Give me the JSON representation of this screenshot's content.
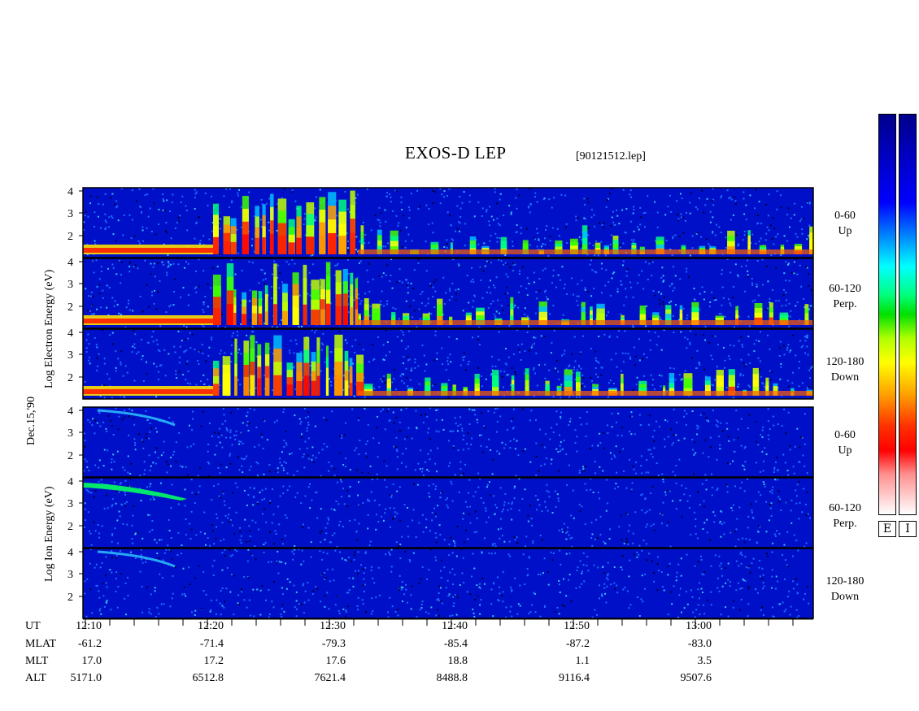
{
  "header": {
    "title": "EXOS-D LEP",
    "filename": "[90121512.lep]"
  },
  "y_labels": {
    "date": "Dec.15,'90",
    "electron": "Log Electron Energy (eV)",
    "ion": "Log Ion Energy (eV)"
  },
  "panel_labels": [
    {
      "range": "0-60",
      "dir": "Up"
    },
    {
      "range": "60-120",
      "dir": "Perp."
    },
    {
      "range": "120-180",
      "dir": "Down"
    },
    {
      "range": "0-60",
      "dir": "Up"
    },
    {
      "range": "60-120",
      "dir": "Perp."
    },
    {
      "range": "120-180",
      "dir": "Down"
    }
  ],
  "colorbar": {
    "electron_label": "E",
    "ion_label": "I"
  },
  "orbit_table": {
    "labels": [
      "UT",
      "MLAT",
      "MLT",
      "ALT"
    ],
    "UT": [
      "12:10",
      "12:20",
      "12:30",
      "12:40",
      "12:50",
      "13:00"
    ],
    "MLAT": [
      "-61.2",
      "-71.4",
      "-79.3",
      "-85.4",
      "-87.2",
      "-83.0"
    ],
    "MLT": [
      "17.0",
      "17.2",
      "17.6",
      "18.8",
      "1.1",
      "3.5"
    ],
    "ALT": [
      "5171.0",
      "6512.8",
      "7621.4",
      "8488.8",
      "9116.4",
      "9507.6"
    ]
  },
  "chart_data": {
    "type": "heatmap",
    "title": "EXOS-D LEP",
    "xlabel": "UT",
    "ylabel": "Log Energy (eV)",
    "y_ticks": [
      "2",
      "3",
      "4"
    ],
    "panels": [
      {
        "species": "Electron",
        "pitch_angle": "0-60",
        "direction": "Up"
      },
      {
        "species": "Electron",
        "pitch_angle": "60-120",
        "direction": "Perp."
      },
      {
        "species": "Electron",
        "pitch_angle": "120-180",
        "direction": "Down"
      },
      {
        "species": "Ion",
        "pitch_angle": "0-60",
        "direction": "Up"
      },
      {
        "species": "Ion",
        "pitch_angle": "60-120",
        "direction": "Perp."
      },
      {
        "species": "Ion",
        "pitch_angle": "120-180",
        "direction": "Down"
      }
    ],
    "x_ticks": [
      "12:10",
      "12:20",
      "12:30",
      "12:40",
      "12:50",
      "13:00"
    ],
    "colors": {
      "low": "#00008b",
      "mid": "#00ff00",
      "high": "#ff0000",
      "max": "#ffffff"
    }
  }
}
